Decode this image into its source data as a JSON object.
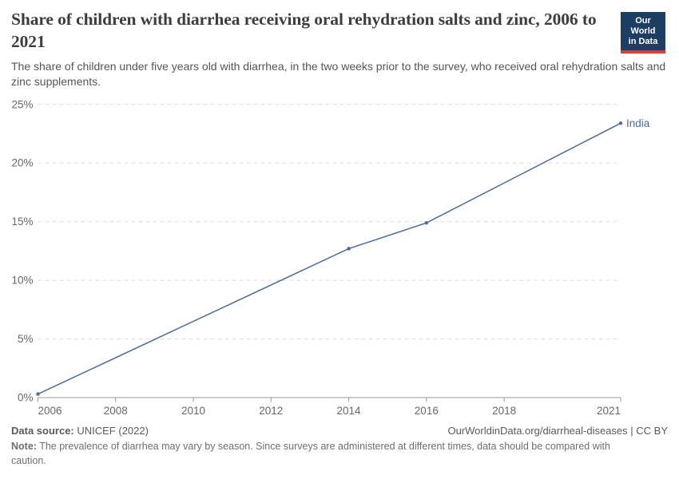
{
  "header": {
    "title": "Share of children with diarrhea receiving oral rehydration salts and zinc, 2006 to 2021",
    "subtitle": "The share of children under five years old with diarrhea, in the two weeks prior to the survey, who received oral rehydration salts and zinc supplements.",
    "logo": {
      "line1": "Our World",
      "line2": "in Data",
      "bg_color": "#1d3d63",
      "accent_color": "#dc3e32"
    }
  },
  "chart_data": {
    "type": "line",
    "title": "Share of children with diarrhea receiving oral rehydration salts and zinc, 2006 to 2021",
    "xlabel": "",
    "ylabel": "",
    "xlim": [
      2006,
      2021
    ],
    "ylim": [
      0,
      25
    ],
    "x_ticks": [
      2006,
      2008,
      2010,
      2012,
      2014,
      2016,
      2018,
      2021
    ],
    "y_ticks": [
      0,
      5,
      10,
      15,
      20,
      25
    ],
    "y_tick_suffix": "%",
    "grid": "horizontal-dashed",
    "legend_position": "end-of-line-label",
    "series": [
      {
        "name": "India",
        "color": "#4c6a9c",
        "points": [
          {
            "x": 2006,
            "y": 0.3
          },
          {
            "x": 2014,
            "y": 12.7
          },
          {
            "x": 2016,
            "y": 14.9
          },
          {
            "x": 2021,
            "y": 23.4
          }
        ]
      }
    ],
    "colors": {
      "gridline": "#dcdcdc",
      "axis_line": "#999999",
      "tick_label": "#676767"
    }
  },
  "footer": {
    "source_label": "Data source:",
    "source_value": " UNICEF (2022)",
    "attribution": "OurWorldinData.org/diarrheal-diseases | CC BY",
    "note_label": "Note:",
    "note_value": " The prevalence of diarrhea may vary by season. Since surveys are administered at different times, data should be compared with caution."
  }
}
